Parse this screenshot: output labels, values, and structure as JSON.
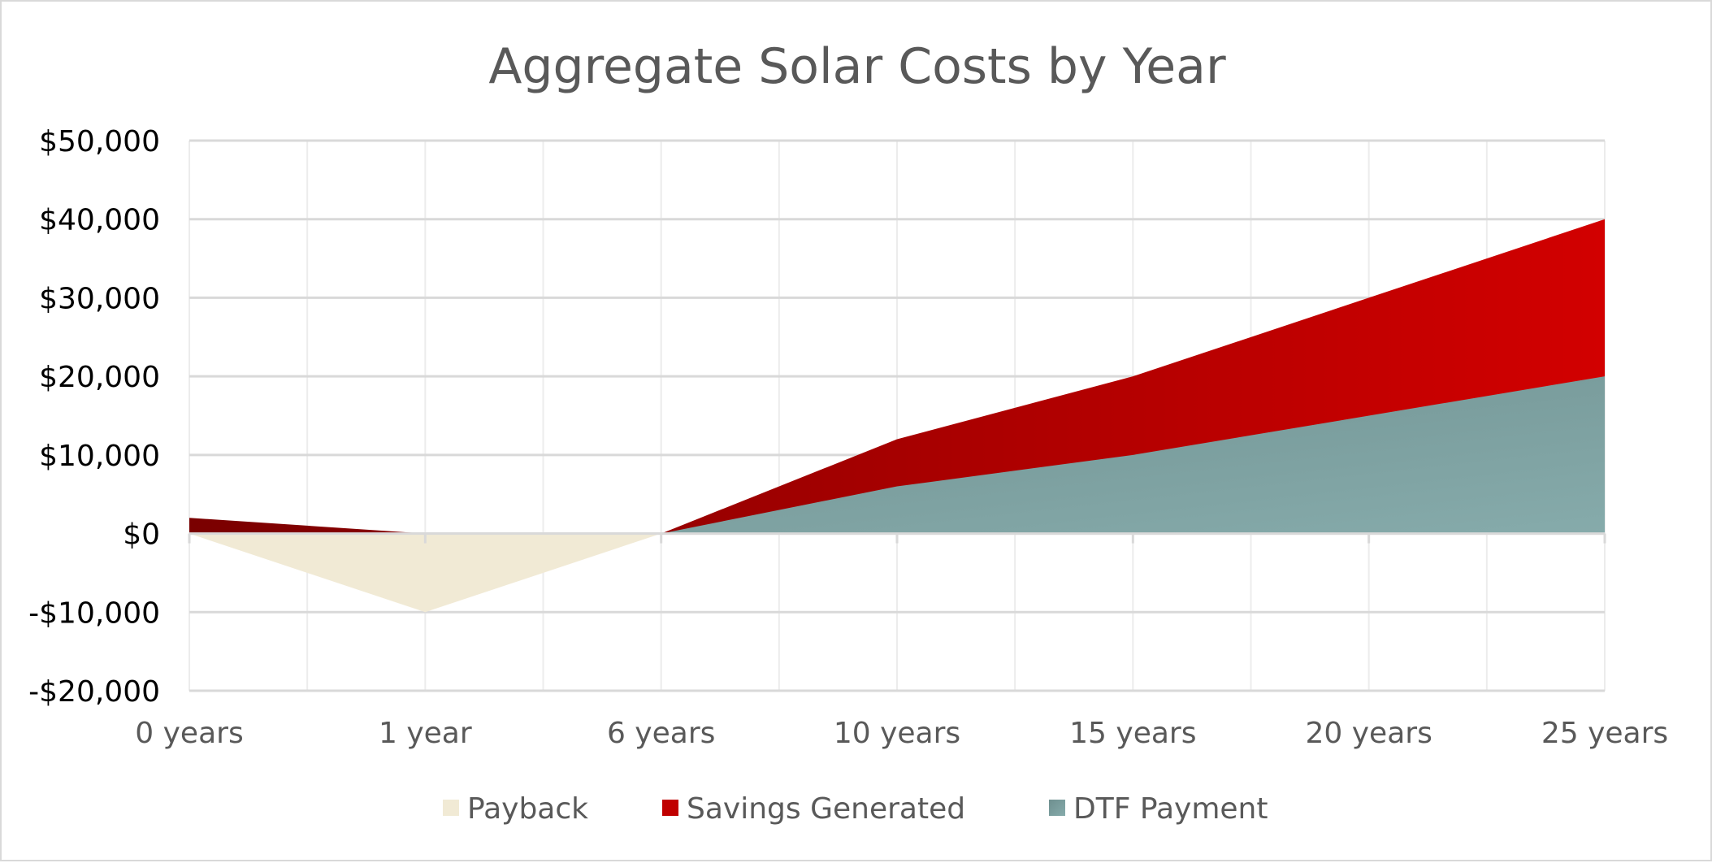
{
  "chart_data": {
    "type": "area",
    "title": "Aggregate Solar Costs by Year",
    "xlabel": "",
    "ylabel": "",
    "categories": [
      "0 years",
      "1 year",
      "6 years",
      "10 years",
      "15 years",
      "20 years",
      "25 years"
    ],
    "ylim": [
      -20000,
      50000
    ],
    "yticks": [
      50000,
      40000,
      30000,
      20000,
      10000,
      0,
      -10000,
      -20000
    ],
    "ytick_labels": [
      "$50,000",
      "$40,000",
      "$30,000",
      "$20,000",
      "$10,000",
      "$0",
      "-$10,000",
      "-$20,000"
    ],
    "grid": true,
    "legend_position": "bottom",
    "series": [
      {
        "name": "Payback",
        "values": [
          0,
          -10000,
          0,
          0,
          0,
          0,
          0
        ],
        "color": "#f1ead5"
      },
      {
        "name": "Savings Generated",
        "values": [
          2000,
          0,
          0,
          12000,
          20000,
          30000,
          40000
        ],
        "color": "#c00000",
        "gradient": [
          "#7a0000",
          "#d20000"
        ]
      },
      {
        "name": "DTF Payment",
        "values": [
          0,
          0,
          0,
          6000,
          10000,
          15000,
          20000
        ],
        "color": "#7a9c9c",
        "gradient": [
          "#6e8f8f",
          "#86abab"
        ]
      }
    ]
  }
}
